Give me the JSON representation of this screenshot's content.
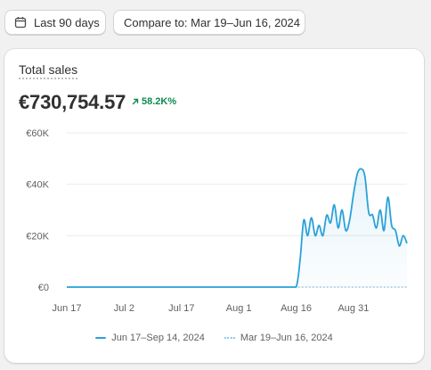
{
  "toolbar": {
    "range_label": "Last 90 days",
    "compare_label": "Compare to: Mar 19–Jun 16, 2024"
  },
  "card": {
    "title": "Total sales",
    "value": "€730,754.57",
    "change": "58.2K%"
  },
  "colors": {
    "primary_series": "#2aa1d8",
    "comparison_series": "#8fcbea",
    "positive": "#0c8a4f"
  },
  "icons": {
    "range": "calendar-icon",
    "change": "arrow-up-right-icon"
  },
  "chart_data": {
    "type": "line",
    "x_ticks": [
      "Jun 17",
      "Jul 2",
      "Jul 17",
      "Aug 1",
      "Aug 16",
      "Aug 31"
    ],
    "y_ticks": [
      "€0",
      "€20K",
      "€40K",
      "€60K"
    ],
    "ylim": [
      0,
      60000
    ],
    "grid": true,
    "legend_position": "bottom",
    "series": [
      {
        "name": "Jun 17–Sep 14, 2024",
        "style": "solid",
        "x": [
          "2024-06-17",
          "2024-06-20",
          "2024-06-25",
          "2024-06-30",
          "2024-07-05",
          "2024-07-10",
          "2024-07-15",
          "2024-07-20",
          "2024-07-25",
          "2024-07-30",
          "2024-08-04",
          "2024-08-09",
          "2024-08-14",
          "2024-08-16",
          "2024-08-17",
          "2024-08-18",
          "2024-08-19",
          "2024-08-20",
          "2024-08-21",
          "2024-08-22",
          "2024-08-23",
          "2024-08-24",
          "2024-08-25",
          "2024-08-26",
          "2024-08-27",
          "2024-08-28",
          "2024-08-29",
          "2024-08-30",
          "2024-08-31",
          "2024-09-01",
          "2024-09-02",
          "2024-09-03",
          "2024-09-04",
          "2024-09-05",
          "2024-09-06",
          "2024-09-07",
          "2024-09-08",
          "2024-09-09",
          "2024-09-10",
          "2024-09-11",
          "2024-09-12",
          "2024-09-13",
          "2024-09-14"
        ],
        "values": [
          0,
          0,
          0,
          0,
          0,
          0,
          0,
          0,
          0,
          0,
          0,
          0,
          0,
          0,
          10000,
          26000,
          20000,
          27000,
          20000,
          24000,
          20000,
          28000,
          25000,
          32000,
          23000,
          30000,
          22000,
          26000,
          36000,
          44000,
          46000,
          43000,
          29000,
          28000,
          23000,
          30000,
          22000,
          35000,
          24000,
          22000,
          16000,
          20000,
          17000
        ]
      },
      {
        "name": "Mar 19–Jun 16, 2024",
        "style": "dotted",
        "x": [
          "2024-06-17",
          "2024-08-16",
          "2024-09-14"
        ],
        "values": [
          0,
          0,
          0
        ]
      }
    ]
  }
}
